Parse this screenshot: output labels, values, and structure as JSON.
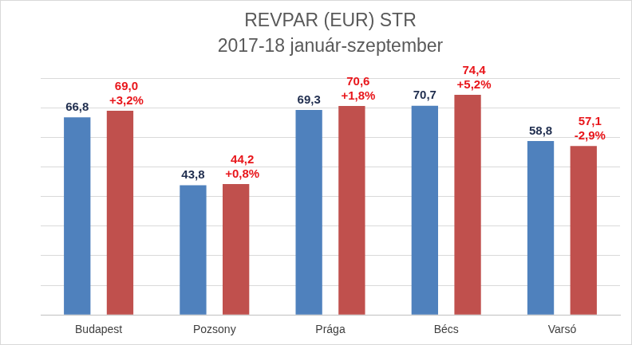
{
  "chart_data": {
    "type": "bar",
    "title": "REVPAR (EUR) STR",
    "subtitle": "2017-18 január-szeptember",
    "categories": [
      "Budapest",
      "Pozsony",
      "Prága",
      "Bécs",
      "Varsó"
    ],
    "series": [
      {
        "color": "#4F81BD",
        "values": [
          66.8,
          43.8,
          69.3,
          70.7,
          58.8
        ],
        "value_labels": [
          "66,8",
          "43,8",
          "69,3",
          "70,7",
          "58,8"
        ]
      },
      {
        "color": "#C0504D",
        "values": [
          69.0,
          44.2,
          70.6,
          74.4,
          57.1
        ],
        "value_labels": [
          "69,0",
          "44,2",
          "70,6",
          "74,4",
          "57,1"
        ],
        "change_values": [
          3.2,
          0.8,
          1.8,
          5.2,
          -2.9
        ],
        "change_labels": [
          "+3,2%",
          "+0,8%",
          "+1,8%",
          "+5,2%",
          "-2,9%"
        ]
      }
    ],
    "ylim": [
      0,
      80
    ],
    "yticks": [
      0,
      10,
      20,
      30,
      40,
      50,
      60,
      70,
      80
    ],
    "grid": true,
    "data_labels": true,
    "tick_labels": "x"
  }
}
